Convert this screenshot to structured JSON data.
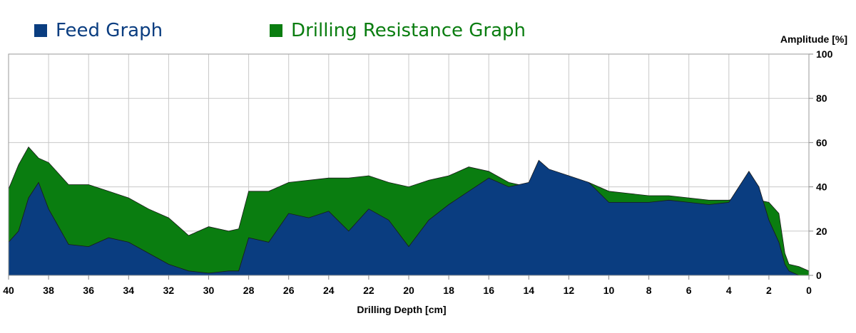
{
  "legend": [
    {
      "label": "Feed Graph",
      "color": "#0a3d80"
    },
    {
      "label": "Drilling Resistance Graph",
      "color": "#0a7d10"
    }
  ],
  "chart_data": {
    "type": "area",
    "xlabel": "Drilling Depth [cm]",
    "ylabel": "Amplitude [%]",
    "xlim": [
      40,
      0
    ],
    "ylim": [
      0,
      100
    ],
    "x_ticks": [
      "40",
      "38",
      "36",
      "34",
      "32",
      "30",
      "28",
      "26",
      "24",
      "22",
      "20",
      "18",
      "16",
      "14",
      "12",
      "10",
      "8",
      "6",
      "4",
      "2",
      "0"
    ],
    "y_ticks": [
      "0",
      "20",
      "40",
      "60",
      "80",
      "100"
    ],
    "grid": true,
    "legend_position": "top-left",
    "x": [
      40,
      39.5,
      39,
      38.5,
      38,
      37.5,
      37,
      36,
      35,
      34,
      33,
      32,
      31,
      30,
      29,
      28.5,
      28,
      27,
      26,
      25,
      24,
      23,
      22,
      21,
      20,
      19,
      18,
      17,
      16,
      15,
      14,
      13.5,
      13,
      12,
      11,
      10,
      9,
      8,
      7,
      6,
      5,
      4,
      3.5,
      3,
      2.5,
      2,
      1.5,
      1.2,
      1,
      0.5,
      0
    ],
    "series": [
      {
        "name": "Drilling Resistance Graph",
        "values": [
          39,
          50,
          58,
          53,
          51,
          46,
          41,
          41,
          38,
          35,
          30,
          26,
          18,
          22,
          20,
          21,
          38,
          38,
          42,
          43,
          44,
          44,
          45,
          42,
          40,
          43,
          45,
          49,
          47,
          42,
          40,
          48,
          45,
          40,
          42,
          38,
          37,
          36,
          36,
          35,
          34,
          34,
          35,
          35,
          34,
          33,
          28,
          10,
          5,
          4,
          2
        ]
      },
      {
        "name": "Feed Graph",
        "values": [
          15,
          20,
          35,
          42,
          30,
          22,
          14,
          13,
          17,
          15,
          10,
          5,
          2,
          1,
          2,
          2,
          17,
          15,
          28,
          26,
          29,
          20,
          30,
          25,
          13,
          25,
          32,
          38,
          44,
          40,
          42,
          52,
          48,
          45,
          42,
          33,
          33,
          33,
          34,
          33,
          32,
          33,
          40,
          47,
          40,
          25,
          15,
          5,
          2,
          0,
          0
        ]
      }
    ]
  }
}
